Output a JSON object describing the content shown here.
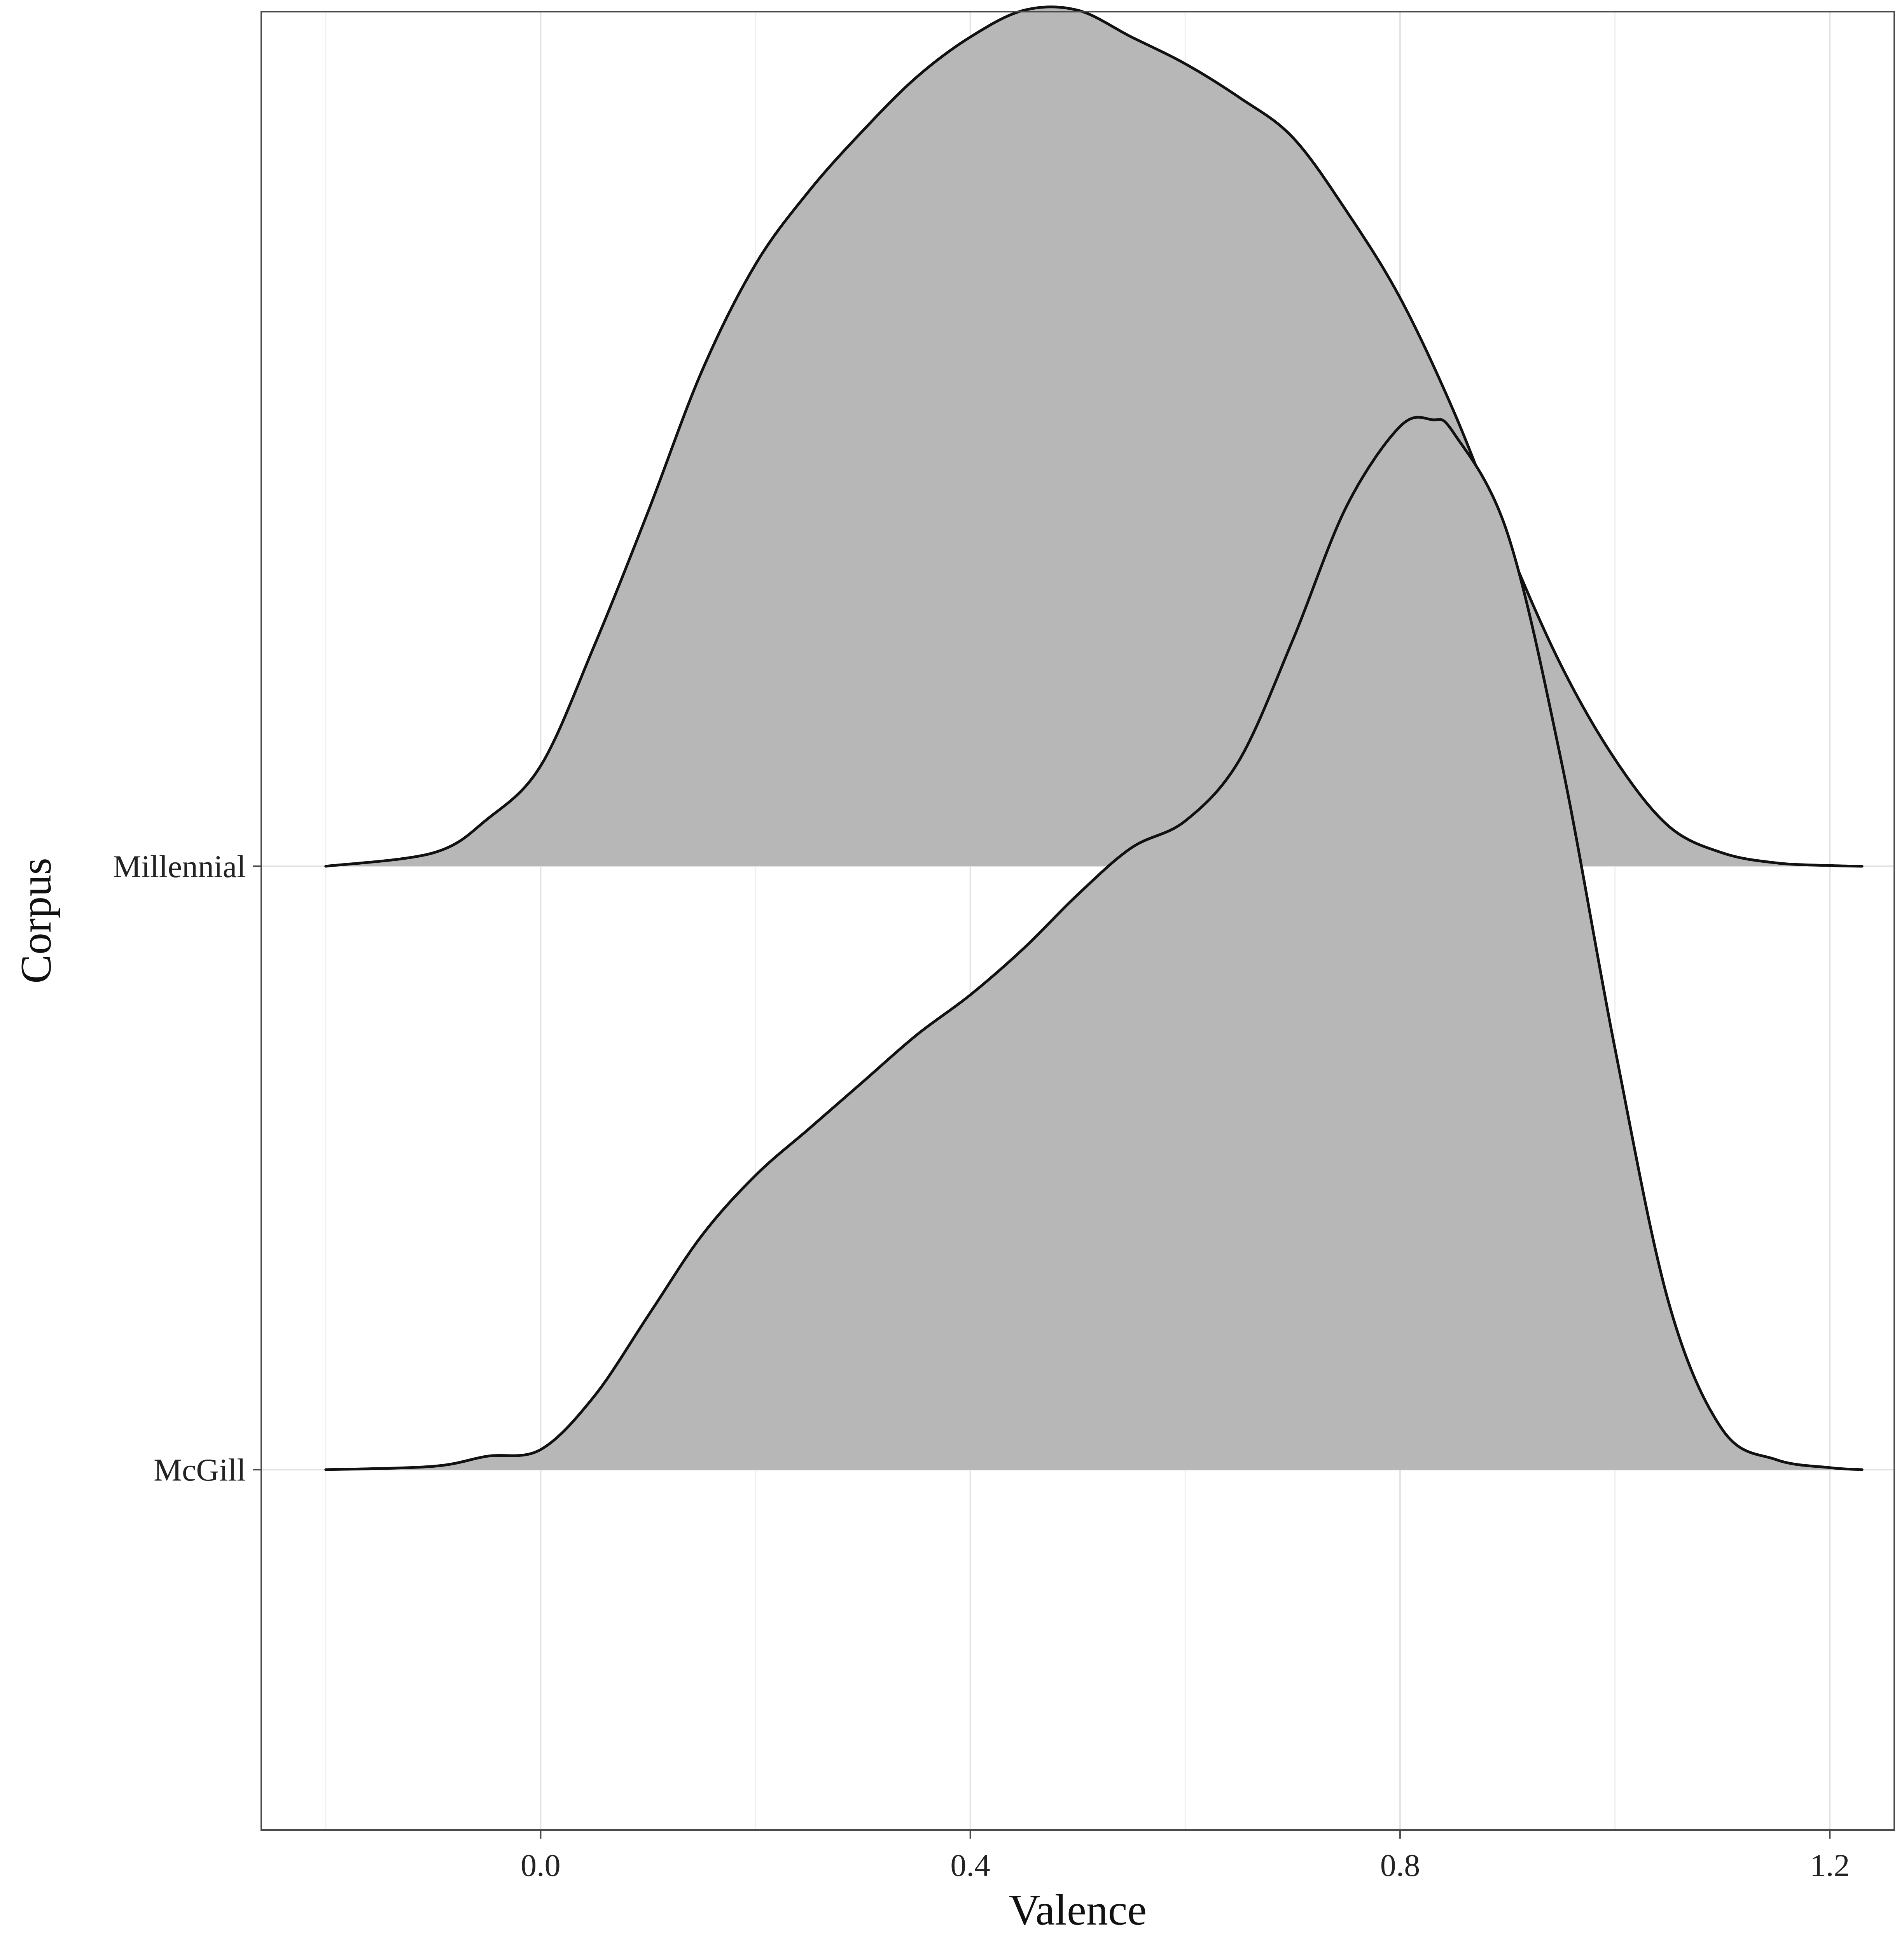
{
  "chart_data": {
    "type": "area",
    "subtype": "ridgeline",
    "xlabel": "Valence",
    "ylabel": "Corpus",
    "xlim": [
      -0.26,
      1.26
    ],
    "x_ticks": [
      0.0,
      0.4,
      0.8,
      1.2
    ],
    "x_tick_labels": [
      "0.0",
      "0.4",
      "0.8",
      "1.2"
    ],
    "categories": [
      "McGill",
      "Millennial"
    ],
    "grid": true,
    "legend": "none",
    "colors": {
      "fill": "#b7b7b7",
      "line": "#111111",
      "grid": "#e3e3e3",
      "border": "#4a4a4a"
    },
    "series": [
      {
        "name": "Millennial",
        "density_scaled": {
          "x": [
            -0.2,
            -0.1,
            -0.05,
            0.0,
            0.05,
            0.1,
            0.15,
            0.2,
            0.25,
            0.3,
            0.35,
            0.4,
            0.45,
            0.5,
            0.55,
            0.6,
            0.65,
            0.7,
            0.75,
            0.8,
            0.85,
            0.9,
            0.95,
            1.0,
            1.05,
            1.1,
            1.15,
            1.2,
            1.23
          ],
          "y": [
            0.0,
            0.02,
            0.07,
            0.15,
            0.33,
            0.53,
            0.74,
            0.9,
            1.01,
            1.1,
            1.18,
            1.24,
            1.28,
            1.28,
            1.24,
            1.2,
            1.15,
            1.09,
            0.98,
            0.85,
            0.68,
            0.48,
            0.3,
            0.16,
            0.06,
            0.02,
            0.005,
            0.001,
            0.0
          ]
        }
      },
      {
        "name": "McGill",
        "density_scaled": {
          "x": [
            -0.2,
            -0.1,
            -0.05,
            0.0,
            0.05,
            0.1,
            0.15,
            0.2,
            0.25,
            0.3,
            0.35,
            0.4,
            0.45,
            0.5,
            0.55,
            0.6,
            0.65,
            0.7,
            0.75,
            0.8,
            0.83,
            0.85,
            0.9,
            0.95,
            1.0,
            1.05,
            1.1,
            1.15,
            1.2,
            1.23
          ],
          "y": [
            0.0,
            0.005,
            0.02,
            0.03,
            0.11,
            0.23,
            0.35,
            0.44,
            0.51,
            0.58,
            0.65,
            0.71,
            0.78,
            0.86,
            0.93,
            0.97,
            1.06,
            1.24,
            1.44,
            1.56,
            1.57,
            1.55,
            1.4,
            1.06,
            0.63,
            0.25,
            0.06,
            0.015,
            0.003,
            0.0
          ]
        }
      }
    ]
  }
}
